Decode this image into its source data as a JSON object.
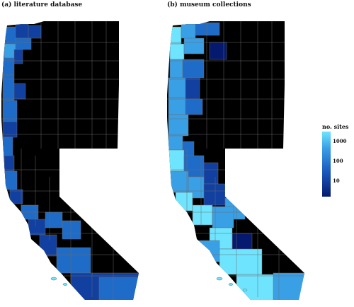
{
  "panels": [
    {
      "id": "a",
      "title": "(a) literature database"
    },
    {
      "id": "b",
      "title": "(b) museum collections"
    }
  ],
  "legend": {
    "title": "no. sites",
    "ticks": [
      "1000",
      "100",
      "10"
    ],
    "scale": "log",
    "colors": [
      "#051a6e",
      "#1a5dc0",
      "#3aa0e6",
      "#6fe4ff"
    ]
  },
  "colors": {
    "no_data": "#000000",
    "border": "#6b6b6b",
    "low": "#051a6e",
    "mid_low": "#1140a0",
    "mid": "#1f6cc8",
    "mid_high": "#3aa0e6",
    "high": "#6fe4ff"
  }
}
